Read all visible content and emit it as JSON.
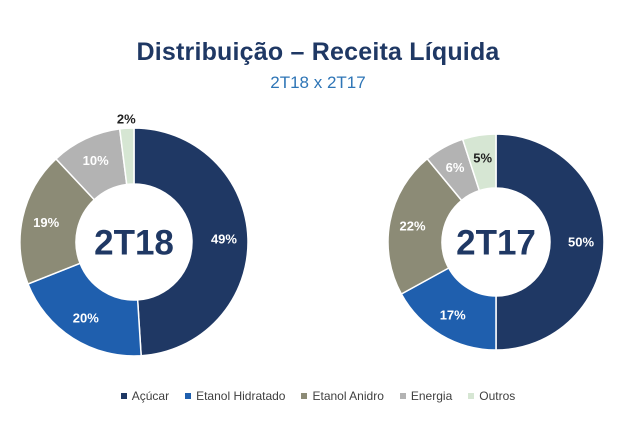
{
  "header": {
    "title": "Distribuição – Receita Líquida",
    "subtitle": "2T18 x 2T17"
  },
  "chart_data": [
    {
      "type": "pie",
      "variant": "donut",
      "center_label": "2T18",
      "categories": [
        "Açúcar",
        "Etanol Hidratado",
        "Etanol Anidro",
        "Energia",
        "Outros"
      ],
      "values": [
        49,
        20,
        19,
        10,
        2
      ],
      "labels": [
        "49%",
        "20%",
        "19%",
        "10%",
        "2%"
      ],
      "colors": [
        "#1f3864",
        "#1f5fae",
        "#8c8b76",
        "#b3b3b3",
        "#d6e6d3"
      ],
      "label_colors": [
        "#ffffff",
        "#ffffff",
        "#ffffff",
        "#ffffff",
        "#222222"
      ]
    },
    {
      "type": "pie",
      "variant": "donut",
      "center_label": "2T17",
      "categories": [
        "Açúcar",
        "Etanol Hidratado",
        "Etanol Anidro",
        "Energia",
        "Outros"
      ],
      "values": [
        50,
        17,
        22,
        6,
        5
      ],
      "labels": [
        "50%",
        "17%",
        "22%",
        "6%",
        "5%"
      ],
      "colors": [
        "#1f3864",
        "#1f5fae",
        "#8c8b76",
        "#b3b3b3",
        "#d6e6d3"
      ],
      "label_colors": [
        "#ffffff",
        "#ffffff",
        "#ffffff",
        "#ffffff",
        "#222222"
      ]
    }
  ],
  "legend": {
    "placement": "bottom",
    "items": [
      {
        "label": "Açúcar",
        "color": "#1f3864"
      },
      {
        "label": "Etanol Hidratado",
        "color": "#1f5fae"
      },
      {
        "label": "Etanol Anidro",
        "color": "#8c8b76"
      },
      {
        "label": "Energia",
        "color": "#b3b3b3"
      },
      {
        "label": "Outros",
        "color": "#d6e6d3"
      }
    ]
  }
}
